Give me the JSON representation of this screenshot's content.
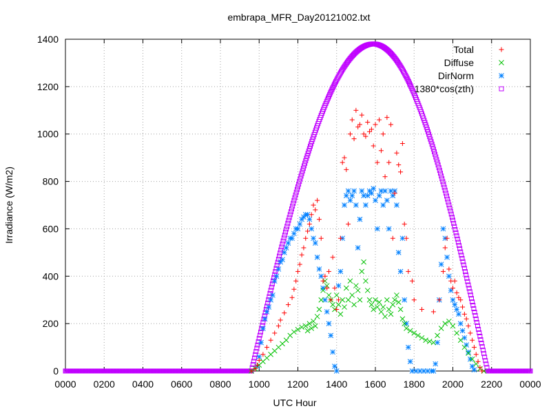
{
  "chart_data": {
    "type": "scatter",
    "title": "embrapa_MFR_Day20121002.txt",
    "xlabel": "UTC Hour",
    "ylabel": "Irradiance (W/m2)",
    "xlim": [
      0,
      2400
    ],
    "ylim": [
      0,
      1400
    ],
    "x_tick_labels": [
      "0000",
      "0200",
      "0400",
      "0600",
      "0800",
      "1000",
      "1200",
      "1400",
      "1600",
      "1800",
      "2000",
      "2200",
      "0000"
    ],
    "y_ticks": [
      0,
      200,
      400,
      600,
      800,
      1000,
      1200,
      1400
    ],
    "grid": true,
    "legend_position": "top-right",
    "colors": {
      "total": "#ff0000",
      "diffuse": "#00c000",
      "dirnorm": "#0080ff",
      "cos": "#c000ff"
    },
    "series": [
      {
        "name": "Total",
        "marker": "plus",
        "color": "#ff0000",
        "points": [
          [
            960,
            0
          ],
          [
            980,
            10
          ],
          [
            990,
            25
          ],
          [
            1000,
            45
          ],
          [
            1020,
            70
          ],
          [
            1040,
            100
          ],
          [
            1060,
            130
          ],
          [
            1080,
            160
          ],
          [
            1100,
            190
          ],
          [
            1110,
            215
          ],
          [
            1130,
            245
          ],
          [
            1150,
            280
          ],
          [
            1170,
            310
          ],
          [
            1180,
            345
          ],
          [
            1190,
            380
          ],
          [
            1200,
            420
          ],
          [
            1210,
            450
          ],
          [
            1220,
            490
          ],
          [
            1230,
            520
          ],
          [
            1240,
            560
          ],
          [
            1250,
            590
          ],
          [
            1260,
            620
          ],
          [
            1270,
            660
          ],
          [
            1280,
            700
          ],
          [
            1290,
            680
          ],
          [
            1300,
            720
          ],
          [
            1310,
            640
          ],
          [
            1320,
            560
          ],
          [
            1330,
            380
          ],
          [
            1340,
            400
          ],
          [
            1350,
            350
          ],
          [
            1360,
            420
          ],
          [
            1370,
            300
          ],
          [
            1380,
            480
          ],
          [
            1390,
            350
          ],
          [
            1400,
            260
          ],
          [
            1410,
            300
          ],
          [
            1420,
            560
          ],
          [
            1430,
            880
          ],
          [
            1440,
            900
          ],
          [
            1450,
            850
          ],
          [
            1460,
            620
          ],
          [
            1470,
            1000
          ],
          [
            1480,
            1060
          ],
          [
            1490,
            980
          ],
          [
            1500,
            1100
          ],
          [
            1510,
            1030
          ],
          [
            1520,
            1040
          ],
          [
            1530,
            1080
          ],
          [
            1540,
            1000
          ],
          [
            1550,
            990
          ],
          [
            1560,
            1050
          ],
          [
            1570,
            1010
          ],
          [
            1580,
            1020
          ],
          [
            1590,
            950
          ],
          [
            1600,
            1040
          ],
          [
            1610,
            880
          ],
          [
            1620,
            1060
          ],
          [
            1630,
            930
          ],
          [
            1640,
            1000
          ],
          [
            1650,
            820
          ],
          [
            1660,
            1070
          ],
          [
            1670,
            880
          ],
          [
            1680,
            1040
          ],
          [
            1690,
            560
          ],
          [
            1700,
            750
          ],
          [
            1710,
            920
          ],
          [
            1720,
            870
          ],
          [
            1730,
            840
          ],
          [
            1740,
            960
          ],
          [
            1750,
            620
          ],
          [
            1760,
            560
          ],
          [
            1770,
            420
          ],
          [
            1790,
            380
          ],
          [
            1800,
            300
          ],
          [
            1840,
            260
          ],
          [
            1900,
            250
          ],
          [
            1930,
            300
          ],
          [
            1950,
            420
          ],
          [
            1960,
            520
          ],
          [
            1970,
            560
          ],
          [
            1980,
            430
          ],
          [
            1990,
            380
          ],
          [
            2000,
            350
          ],
          [
            2010,
            380
          ],
          [
            2020,
            330
          ],
          [
            2030,
            310
          ],
          [
            2040,
            300
          ],
          [
            2050,
            270
          ],
          [
            2060,
            240
          ],
          [
            2070,
            220
          ],
          [
            2080,
            190
          ],
          [
            2090,
            160
          ],
          [
            2100,
            130
          ],
          [
            2110,
            100
          ],
          [
            2120,
            70
          ],
          [
            2130,
            40
          ],
          [
            2140,
            15
          ],
          [
            2150,
            0
          ]
        ]
      },
      {
        "name": "Diffuse",
        "marker": "cross",
        "color": "#00c000",
        "points": [
          [
            960,
            0
          ],
          [
            980,
            10
          ],
          [
            1000,
            25
          ],
          [
            1020,
            40
          ],
          [
            1040,
            55
          ],
          [
            1060,
            70
          ],
          [
            1080,
            85
          ],
          [
            1100,
            100
          ],
          [
            1120,
            115
          ],
          [
            1140,
            130
          ],
          [
            1160,
            150
          ],
          [
            1180,
            165
          ],
          [
            1200,
            175
          ],
          [
            1220,
            185
          ],
          [
            1240,
            190
          ],
          [
            1250,
            170
          ],
          [
            1260,
            200
          ],
          [
            1270,
            180
          ],
          [
            1280,
            210
          ],
          [
            1290,
            190
          ],
          [
            1300,
            230
          ],
          [
            1310,
            260
          ],
          [
            1320,
            300
          ],
          [
            1330,
            340
          ],
          [
            1340,
            380
          ],
          [
            1350,
            360
          ],
          [
            1360,
            320
          ],
          [
            1370,
            300
          ],
          [
            1380,
            280
          ],
          [
            1390,
            260
          ],
          [
            1400,
            320
          ],
          [
            1410,
            280
          ],
          [
            1420,
            240
          ],
          [
            1430,
            300
          ],
          [
            1440,
            270
          ],
          [
            1450,
            350
          ],
          [
            1460,
            300
          ],
          [
            1470,
            380
          ],
          [
            1480,
            320
          ],
          [
            1490,
            280
          ],
          [
            1500,
            360
          ],
          [
            1510,
            340
          ],
          [
            1520,
            300
          ],
          [
            1530,
            420
          ],
          [
            1540,
            460
          ],
          [
            1550,
            380
          ],
          [
            1560,
            340
          ],
          [
            1570,
            300
          ],
          [
            1580,
            280
          ],
          [
            1590,
            260
          ],
          [
            1600,
            300
          ],
          [
            1610,
            270
          ],
          [
            1620,
            290
          ],
          [
            1630,
            250
          ],
          [
            1640,
            270
          ],
          [
            1650,
            230
          ],
          [
            1660,
            300
          ],
          [
            1670,
            260
          ],
          [
            1680,
            240
          ],
          [
            1690,
            280
          ],
          [
            1700,
            300
          ],
          [
            1710,
            320
          ],
          [
            1720,
            290
          ],
          [
            1730,
            260
          ],
          [
            1740,
            220
          ],
          [
            1750,
            200
          ],
          [
            1760,
            180
          ],
          [
            1780,
            170
          ],
          [
            1800,
            160
          ],
          [
            1820,
            150
          ],
          [
            1840,
            140
          ],
          [
            1860,
            130
          ],
          [
            1880,
            125
          ],
          [
            1900,
            120
          ],
          [
            1920,
            150
          ],
          [
            1940,
            180
          ],
          [
            1960,
            200
          ],
          [
            1980,
            210
          ],
          [
            2000,
            190
          ],
          [
            2020,
            160
          ],
          [
            2040,
            130
          ],
          [
            2060,
            100
          ],
          [
            2080,
            75
          ],
          [
            2100,
            50
          ],
          [
            2120,
            30
          ],
          [
            2140,
            10
          ],
          [
            2160,
            0
          ]
        ]
      },
      {
        "name": "DirNorm",
        "marker": "star",
        "color": "#0080ff",
        "points": [
          [
            990,
            20
          ],
          [
            1000,
            60
          ],
          [
            1010,
            120
          ],
          [
            1020,
            180
          ],
          [
            1030,
            220
          ],
          [
            1040,
            250
          ],
          [
            1050,
            270
          ],
          [
            1060,
            300
          ],
          [
            1070,
            320
          ],
          [
            1080,
            380
          ],
          [
            1090,
            400
          ],
          [
            1100,
            430
          ],
          [
            1110,
            460
          ],
          [
            1120,
            470
          ],
          [
            1130,
            500
          ],
          [
            1140,
            520
          ],
          [
            1150,
            540
          ],
          [
            1160,
            560
          ],
          [
            1170,
            560
          ],
          [
            1180,
            580
          ],
          [
            1190,
            600
          ],
          [
            1200,
            600
          ],
          [
            1210,
            620
          ],
          [
            1220,
            640
          ],
          [
            1230,
            650
          ],
          [
            1240,
            660
          ],
          [
            1250,
            660
          ],
          [
            1260,
            640
          ],
          [
            1270,
            600
          ],
          [
            1280,
            560
          ],
          [
            1290,
            540
          ],
          [
            1300,
            480
          ],
          [
            1310,
            430
          ],
          [
            1320,
            400
          ],
          [
            1330,
            350
          ],
          [
            1340,
            300
          ],
          [
            1350,
            250
          ],
          [
            1360,
            200
          ],
          [
            1370,
            150
          ],
          [
            1380,
            80
          ],
          [
            1390,
            20
          ],
          [
            1400,
            0
          ],
          [
            1410,
            360
          ],
          [
            1420,
            420
          ],
          [
            1430,
            560
          ],
          [
            1440,
            700
          ],
          [
            1450,
            740
          ],
          [
            1460,
            760
          ],
          [
            1470,
            720
          ],
          [
            1480,
            740
          ],
          [
            1490,
            760
          ],
          [
            1500,
            700
          ],
          [
            1510,
            520
          ],
          [
            1520,
            640
          ],
          [
            1530,
            760
          ],
          [
            1540,
            740
          ],
          [
            1550,
            700
          ],
          [
            1560,
            740
          ],
          [
            1570,
            760
          ],
          [
            1580,
            750
          ],
          [
            1590,
            770
          ],
          [
            1600,
            720
          ],
          [
            1610,
            600
          ],
          [
            1620,
            740
          ],
          [
            1630,
            760
          ],
          [
            1640,
            700
          ],
          [
            1650,
            760
          ],
          [
            1660,
            720
          ],
          [
            1670,
            600
          ],
          [
            1680,
            760
          ],
          [
            1690,
            740
          ],
          [
            1700,
            760
          ],
          [
            1710,
            700
          ],
          [
            1720,
            500
          ],
          [
            1730,
            420
          ],
          [
            1740,
            560
          ],
          [
            1750,
            300
          ],
          [
            1760,
            200
          ],
          [
            1770,
            100
          ],
          [
            1780,
            40
          ],
          [
            1790,
            0
          ],
          [
            1810,
            0
          ],
          [
            1830,
            0
          ],
          [
            1850,
            0
          ],
          [
            1870,
            0
          ],
          [
            1890,
            0
          ],
          [
            1900,
            0
          ],
          [
            1910,
            30
          ],
          [
            1920,
            120
          ],
          [
            1930,
            300
          ],
          [
            1940,
            450
          ],
          [
            1950,
            600
          ],
          [
            1960,
            560
          ],
          [
            1970,
            480
          ],
          [
            1980,
            400
          ],
          [
            1990,
            340
          ],
          [
            2000,
            300
          ],
          [
            2010,
            280
          ],
          [
            2020,
            260
          ],
          [
            2030,
            240
          ],
          [
            2040,
            200
          ],
          [
            2050,
            170
          ],
          [
            2060,
            140
          ],
          [
            2070,
            110
          ],
          [
            2080,
            80
          ],
          [
            2090,
            50
          ],
          [
            2100,
            20
          ],
          [
            2110,
            5
          ]
        ]
      },
      {
        "name": "1380*cos(zth)",
        "marker": "square",
        "color": "#c000ff",
        "peak": 1380,
        "peak_x": 1590,
        "zero_left_x": 960,
        "zero_right_x": 2180,
        "baseline": 0
      }
    ]
  }
}
